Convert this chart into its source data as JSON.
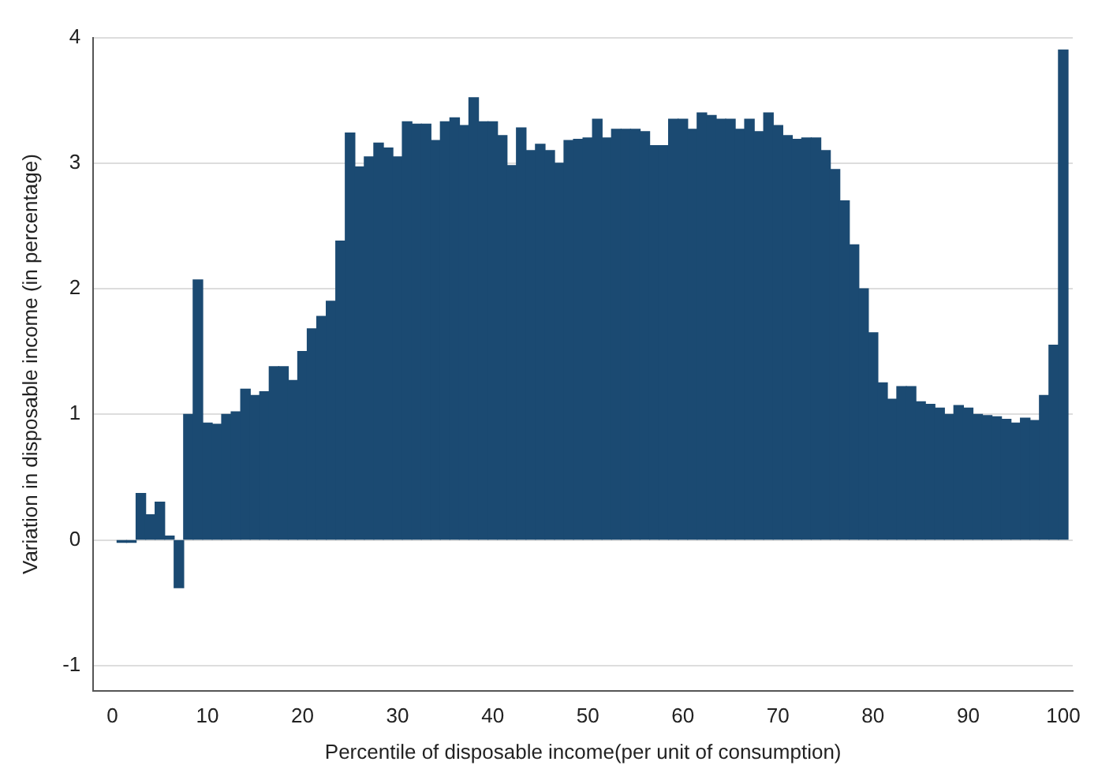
{
  "chart_data": {
    "type": "bar",
    "xlabel": "Percentile of disposable income(per unit of consumption)",
    "ylabel": "Variation in disposable income (in percentage)",
    "x": [
      1,
      2,
      3,
      4,
      5,
      6,
      7,
      8,
      9,
      10,
      11,
      12,
      13,
      14,
      15,
      16,
      17,
      18,
      19,
      20,
      21,
      22,
      23,
      24,
      25,
      26,
      27,
      28,
      29,
      30,
      31,
      32,
      33,
      34,
      35,
      36,
      37,
      38,
      39,
      40,
      41,
      42,
      43,
      44,
      45,
      46,
      47,
      48,
      49,
      50,
      51,
      52,
      53,
      54,
      55,
      56,
      57,
      58,
      59,
      60,
      61,
      62,
      63,
      64,
      65,
      66,
      67,
      68,
      69,
      70,
      71,
      72,
      73,
      74,
      75,
      76,
      77,
      78,
      79,
      80,
      81,
      82,
      83,
      84,
      85,
      86,
      87,
      88,
      89,
      90,
      91,
      92,
      93,
      94,
      95,
      96,
      97,
      98,
      99,
      100
    ],
    "values": [
      -0.02,
      -0.02,
      0.37,
      0.2,
      0.3,
      0.03,
      -0.38,
      1.0,
      2.07,
      0.93,
      0.92,
      1.0,
      1.02,
      1.2,
      1.15,
      1.18,
      1.38,
      1.38,
      1.27,
      1.5,
      1.68,
      1.78,
      1.9,
      2.38,
      3.24,
      2.97,
      3.05,
      3.16,
      3.12,
      3.05,
      3.33,
      3.31,
      3.31,
      3.18,
      3.33,
      3.36,
      3.3,
      3.52,
      3.33,
      3.33,
      3.22,
      2.98,
      3.28,
      3.1,
      3.15,
      3.1,
      3.0,
      3.18,
      3.19,
      3.2,
      3.35,
      3.2,
      3.27,
      3.27,
      3.27,
      3.25,
      3.14,
      3.14,
      3.35,
      3.35,
      3.27,
      3.4,
      3.38,
      3.35,
      3.35,
      3.27,
      3.35,
      3.25,
      3.4,
      3.3,
      3.22,
      3.19,
      3.2,
      3.2,
      3.1,
      2.95,
      2.7,
      2.35,
      2.0,
      1.65,
      1.25,
      1.12,
      1.22,
      1.22,
      1.1,
      1.08,
      1.05,
      1.0,
      1.07,
      1.05,
      1.0,
      0.99,
      0.98,
      0.96,
      0.93,
      0.97,
      0.95,
      1.15,
      1.55,
      3.9
    ],
    "color": "#1b4a72",
    "xlim": [
      -2,
      101
    ],
    "ylim": [
      -1.2,
      4
    ],
    "xticks": [
      0,
      10,
      20,
      30,
      40,
      50,
      60,
      70,
      80,
      90,
      100
    ],
    "yticks": [
      -1,
      0,
      1,
      2,
      3,
      4
    ],
    "grid": "y",
    "legend": false
  }
}
